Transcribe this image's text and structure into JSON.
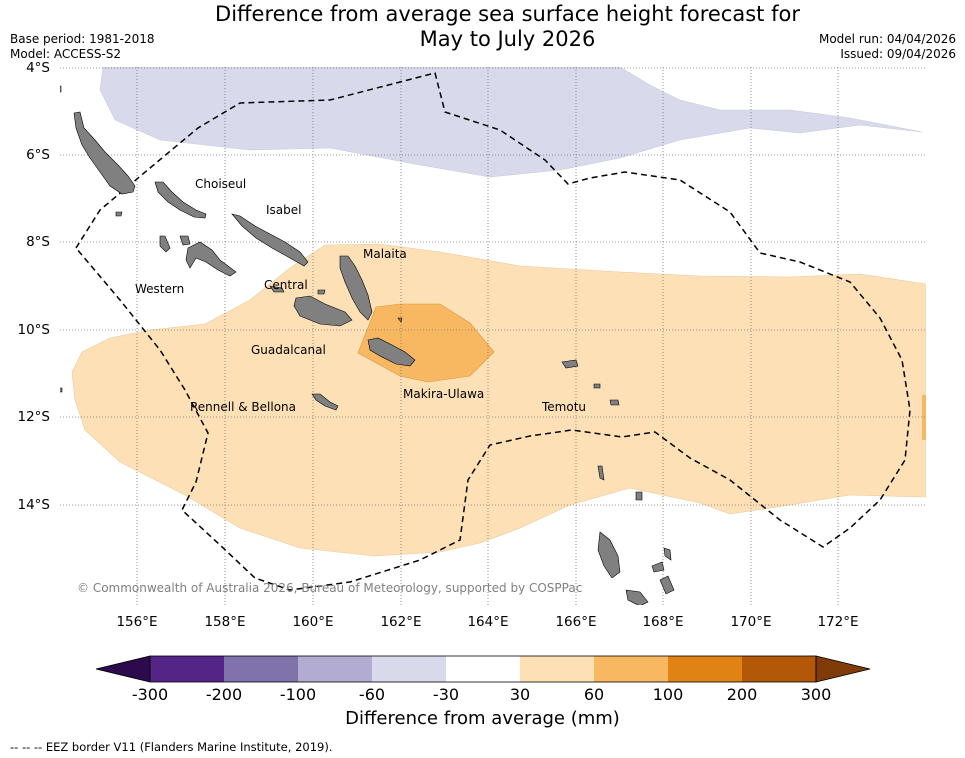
{
  "title_line1": "Difference from average sea surface height forecast for",
  "title_line2": "May to July 2026",
  "base_period": "Base period: 1981-2018",
  "model": "Model: ACCESS-S2",
  "model_run": "Model run: 04/04/2026",
  "issued": "Issued: 09/04/2026",
  "lat_labels": [
    "4°S",
    "6°S",
    "8°S",
    "10°S",
    "12°S",
    "14°S"
  ],
  "lon_labels": [
    "156°E",
    "158°E",
    "160°E",
    "162°E",
    "164°E",
    "166°E",
    "168°E",
    "170°E",
    "172°E"
  ],
  "provinces": {
    "choiseul": "Choiseul",
    "isabel": "Isabel",
    "malaita": "Malaita",
    "western": "Western",
    "central": "Central",
    "guadalcanal": "Guadalcanal",
    "makira_ulawa": "Makira-Ulawa",
    "temotu": "Temotu",
    "rennell_bellona": "Rennell & Bellona"
  },
  "copyright": "© Commonwealth of Australia 2026, Bureau of Meteorology, supported by COSPPac",
  "colorbar": {
    "ticks": [
      "-300",
      "-200",
      "-100",
      "-60",
      "-30",
      "30",
      "60",
      "100",
      "200",
      "300"
    ],
    "colors": [
      "#2d0a4d",
      "#542487",
      "#8073ac",
      "#b2abd2",
      "#d8daeb",
      "#ffffff",
      "#fee0b6",
      "#f8b862",
      "#e08214",
      "#b35806",
      "#7f3b08"
    ],
    "title": "Difference from average (mm)"
  },
  "footer": "--  --  -- EEZ border V11 (Flanders Marine Institute, 2019)."
}
